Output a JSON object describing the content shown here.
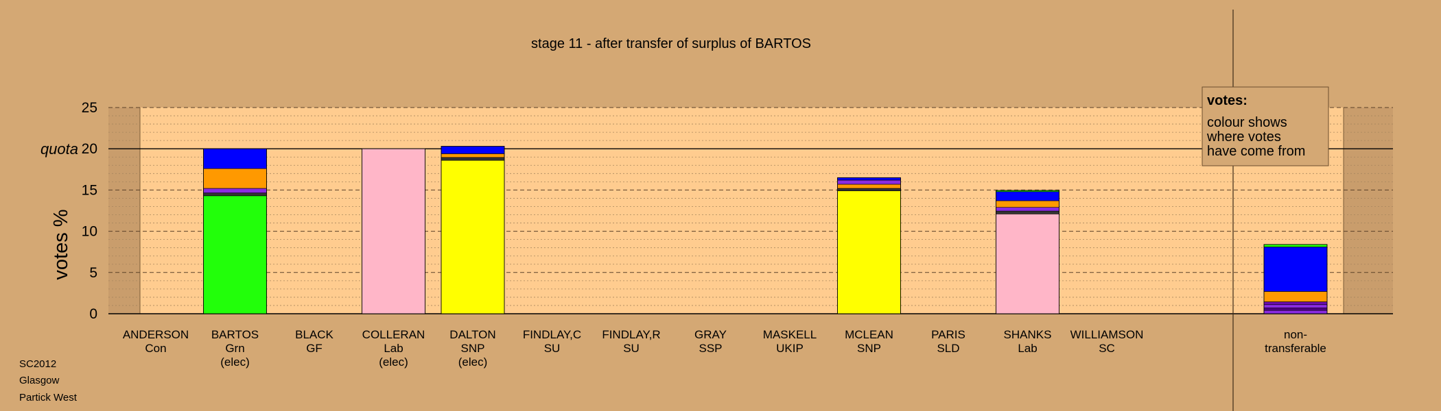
{
  "chart_data": {
    "type": "bar",
    "stacked": true,
    "title": "stage 11 - after transfer of surplus of BARTOS",
    "ylabel": "votes %",
    "ylim": [
      0,
      25
    ],
    "yticks": [
      0,
      5,
      10,
      15,
      20,
      25
    ],
    "quota": 20,
    "quota_label": "quota",
    "grid": true,
    "legend": {
      "position": "top-right",
      "title": "votes:",
      "lines": [
        "colour shows",
        "where votes",
        "have come from"
      ]
    },
    "candidates": [
      {
        "name": "ANDERSON",
        "party": "Con",
        "status": ""
      },
      {
        "name": "BARTOS",
        "party": "Grn",
        "status": "(elec)"
      },
      {
        "name": "BLACK",
        "party": "GF",
        "status": ""
      },
      {
        "name": "COLLERAN",
        "party": "Lab",
        "status": "(elec)"
      },
      {
        "name": "DALTON",
        "party": "SNP",
        "status": "(elec)"
      },
      {
        "name": "FINDLAY,C",
        "party": "SU",
        "status": ""
      },
      {
        "name": "FINDLAY,R",
        "party": "SU",
        "status": ""
      },
      {
        "name": "GRAY",
        "party": "SSP",
        "status": ""
      },
      {
        "name": "MASKELL",
        "party": "UKIP",
        "status": ""
      },
      {
        "name": "MCLEAN",
        "party": "SNP",
        "status": ""
      },
      {
        "name": "PARIS",
        "party": "SLD",
        "status": ""
      },
      {
        "name": "SHANKS",
        "party": "Lab",
        "status": ""
      },
      {
        "name": "WILLIAMSON",
        "party": "SC",
        "status": ""
      },
      {
        "name": "non-",
        "party": "transferable",
        "status": ""
      }
    ],
    "bars": [
      [],
      [
        {
          "value": 14.3,
          "color": "#22ff0a"
        },
        {
          "value": 0.35,
          "color": "#333333"
        },
        {
          "value": 0.55,
          "color": "#8a2be2"
        },
        {
          "value": 2.4,
          "color": "#ff9900"
        },
        {
          "value": 2.4,
          "color": "#0000ff"
        }
      ],
      [],
      [
        {
          "value": 20.0,
          "color": "#ffb6c8"
        }
      ],
      [
        {
          "value": 18.6,
          "color": "#ffff00"
        },
        {
          "value": 0.35,
          "color": "#333333"
        },
        {
          "value": 0.45,
          "color": "#ff9900"
        },
        {
          "value": 0.9,
          "color": "#0000ff"
        }
      ],
      [],
      [],
      [],
      [],
      [
        {
          "value": 14.9,
          "color": "#ffff00"
        },
        {
          "value": 0.3,
          "color": "#333333"
        },
        {
          "value": 0.5,
          "color": "#ff9900"
        },
        {
          "value": 0.5,
          "color": "#8a2be2"
        },
        {
          "value": 0.3,
          "color": "#0000ff"
        }
      ],
      [],
      [
        {
          "value": 12.1,
          "color": "#ffb6c8"
        },
        {
          "value": 0.35,
          "color": "#333333"
        },
        {
          "value": 0.45,
          "color": "#8a2be2"
        },
        {
          "value": 0.8,
          "color": "#ff9900"
        },
        {
          "value": 1.1,
          "color": "#0000ff"
        },
        {
          "value": 0.15,
          "color": "#22ff0a"
        }
      ],
      [],
      [
        {
          "value": 0.4,
          "color": "#8a2be2"
        },
        {
          "value": 0.3,
          "color": "#4b0082"
        },
        {
          "value": 0.4,
          "color": "#8a2be2"
        },
        {
          "value": 0.35,
          "color": "#6a0dad"
        },
        {
          "value": 1.25,
          "color": "#ff9900"
        },
        {
          "value": 5.4,
          "color": "#0000ff"
        },
        {
          "value": 0.3,
          "color": "#22ff0a"
        }
      ]
    ]
  },
  "footer": [
    "SC2012",
    "Glasgow",
    "Partick West"
  ]
}
